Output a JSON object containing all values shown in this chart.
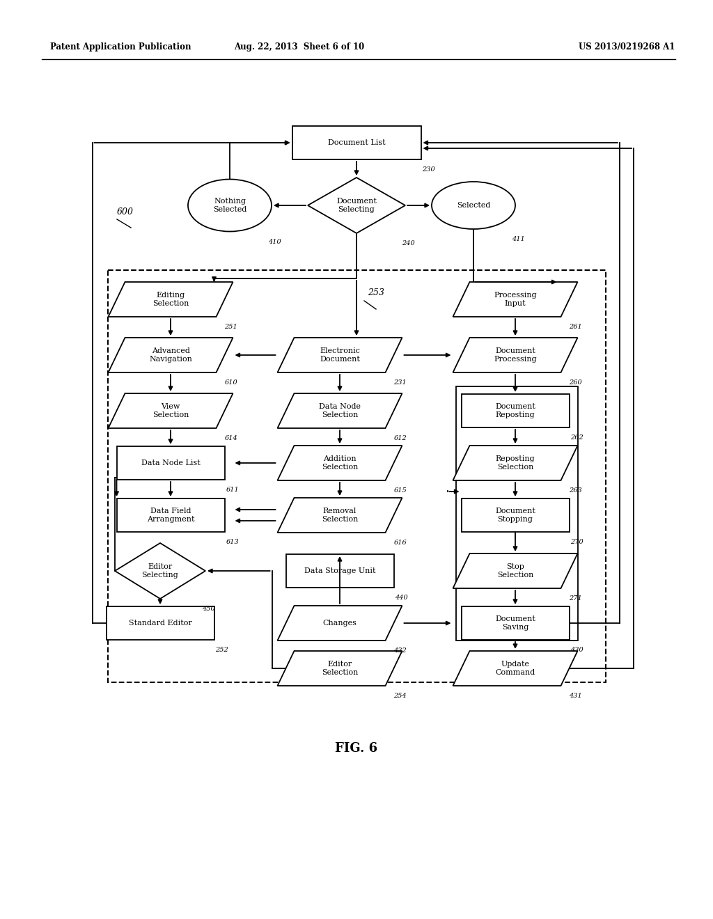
{
  "header_left": "Patent Application Publication",
  "header_mid": "Aug. 22, 2013  Sheet 6 of 10",
  "header_right": "US 2013/0219268 A1",
  "fig_label": "FIG. 6",
  "bg_color": "#ffffff",
  "line_color": "#000000"
}
